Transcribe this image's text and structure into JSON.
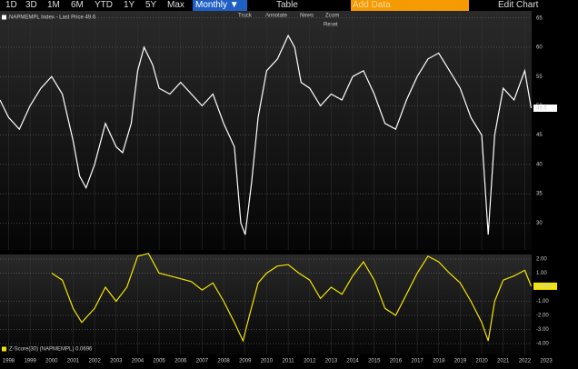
{
  "toolbar": {
    "ranges": [
      "1D",
      "3D",
      "1M",
      "6M",
      "YTD",
      "1Y",
      "5Y",
      "Max"
    ],
    "frequency": "Monthly ▼",
    "table": "Table",
    "add_data": "Add Data",
    "edit_chart": "Edit Chart",
    "tools": [
      "Track",
      "Annotate",
      "News",
      "Zoom"
    ],
    "reset": "Reset"
  },
  "chart_data": [
    {
      "type": "line",
      "x": [
        1997.6,
        1998,
        1998.5,
        1999,
        1999.5,
        2000,
        2000.5,
        2001,
        2001.3,
        2001.6,
        2002,
        2002.5,
        2003,
        2003.3,
        2003.7,
        2004,
        2004.3,
        2004.7,
        2005,
        2005.5,
        2006,
        2006.5,
        2007,
        2007.5,
        2008,
        2008.5,
        2008.8,
        2009,
        2009.3,
        2009.6,
        2010,
        2010.5,
        2011,
        2011.3,
        2011.6,
        2012,
        2012.5,
        2013,
        2013.5,
        2014,
        2014.5,
        2015,
        2015.5,
        2016,
        2016.5,
        2017,
        2017.5,
        2018,
        2018.5,
        2019,
        2019.5,
        2020,
        2020.3,
        2020.6,
        2021,
        2021.5,
        2022,
        2022.3
      ],
      "series": [
        {
          "name": "NAPMEMPL Index - Last Price 49.6",
          "color": "#ffffff",
          "values": [
            51,
            48,
            46,
            50,
            53,
            55,
            52,
            44,
            38,
            36,
            40,
            47,
            43,
            42,
            47,
            56,
            60,
            57,
            53,
            52,
            54,
            52,
            50,
            52,
            47,
            43,
            30,
            28,
            37,
            48,
            56,
            58,
            62,
            60,
            54,
            53,
            50,
            52,
            51,
            55,
            56,
            52,
            47,
            46,
            51,
            55,
            58,
            59,
            56,
            53,
            48,
            45,
            28,
            45,
            53,
            51,
            56,
            49.6
          ]
        }
      ],
      "xlim": [
        1997.6,
        2023.8
      ],
      "ylim": [
        25.4,
        66.2
      ],
      "xticks": [
        1998,
        1999,
        2000,
        2001,
        2002,
        2003,
        2004,
        2005,
        2006,
        2007,
        2008,
        2009,
        2010,
        2011,
        2012,
        2013,
        2014,
        2015,
        2016,
        2017,
        2018,
        2019,
        2020,
        2021,
        2022,
        2023
      ],
      "yticks": [
        30,
        35,
        40,
        45,
        50,
        55,
        60,
        65
      ],
      "grid": true
    },
    {
      "type": "line",
      "x": [
        2000,
        2000.5,
        2001,
        2001.4,
        2002,
        2002.5,
        2003,
        2003.5,
        2004,
        2004.5,
        2005,
        2005.5,
        2006,
        2006.5,
        2007,
        2007.5,
        2008,
        2008.5,
        2008.9,
        2009.2,
        2009.6,
        2010,
        2010.5,
        2011,
        2011.5,
        2012,
        2012.5,
        2013,
        2013.5,
        2014,
        2014.5,
        2015,
        2015.5,
        2016,
        2016.5,
        2017,
        2017.5,
        2018,
        2018.5,
        2019,
        2019.5,
        2020,
        2020.3,
        2020.6,
        2021,
        2021.5,
        2022,
        2022.3
      ],
      "series": [
        {
          "name": "Z-Score(30) (NAPMEMPL) 0.0696",
          "color": "#f2e600",
          "values": [
            1,
            0.5,
            -1.5,
            -2.5,
            -1.5,
            0,
            -1,
            0,
            2.2,
            2.4,
            1,
            0.8,
            0.6,
            0.4,
            -0.2,
            0.3,
            -1,
            -2.5,
            -3.8,
            -2,
            0.3,
            1,
            1.5,
            1.6,
            1,
            0.5,
            -0.8,
            0,
            -0.5,
            0.8,
            1.8,
            0.5,
            -1.5,
            -2,
            -0.5,
            1,
            2.2,
            1.8,
            1,
            0.3,
            -1,
            -2.5,
            -3.8,
            -1,
            0.5,
            0.8,
            1.2,
            0.0696
          ]
        }
      ],
      "xlim": [
        1997.6,
        2023.8
      ],
      "ylim": [
        -4.77,
        2.32
      ],
      "xticks": [
        1998,
        1999,
        2000,
        2001,
        2002,
        2003,
        2004,
        2005,
        2006,
        2007,
        2008,
        2009,
        2010,
        2011,
        2012,
        2013,
        2014,
        2015,
        2016,
        2017,
        2018,
        2019,
        2020,
        2021,
        2022,
        2023
      ],
      "yticks": [
        {
          "value": 2,
          "label": "2.00"
        },
        {
          "value": 1,
          "label": "1.00"
        },
        {
          "value": -1,
          "label": "-1.00"
        },
        {
          "value": -2,
          "label": "-2.00"
        },
        {
          "value": -3,
          "label": "-3.00"
        },
        {
          "value": -4,
          "label": "-4.00"
        }
      ],
      "grid": true
    }
  ]
}
